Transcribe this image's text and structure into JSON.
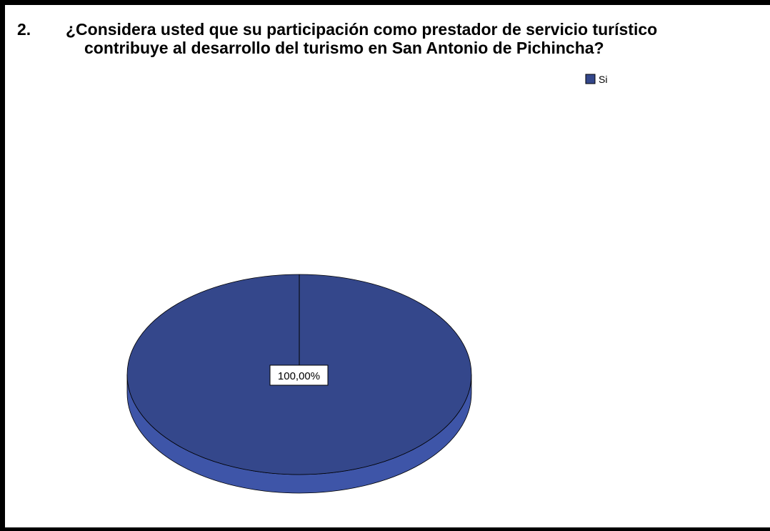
{
  "chart_data": {
    "type": "pie",
    "title_number": "2.",
    "title_lines": [
      "¿Considera usted que su participación como prestador de servicio turístico",
      "contribuye al desarrollo del turismo en San Antonio de Pichincha?"
    ],
    "categories": [
      "Si"
    ],
    "values": [
      100
    ],
    "data_labels": [
      "100,00%"
    ],
    "legend": [
      {
        "label": "Si",
        "color": "#34478b"
      }
    ],
    "legend_position": "top-right",
    "style": "3d",
    "colors": {
      "top": "#34478b",
      "side": "#3e55a8",
      "outline": "#000000"
    }
  }
}
